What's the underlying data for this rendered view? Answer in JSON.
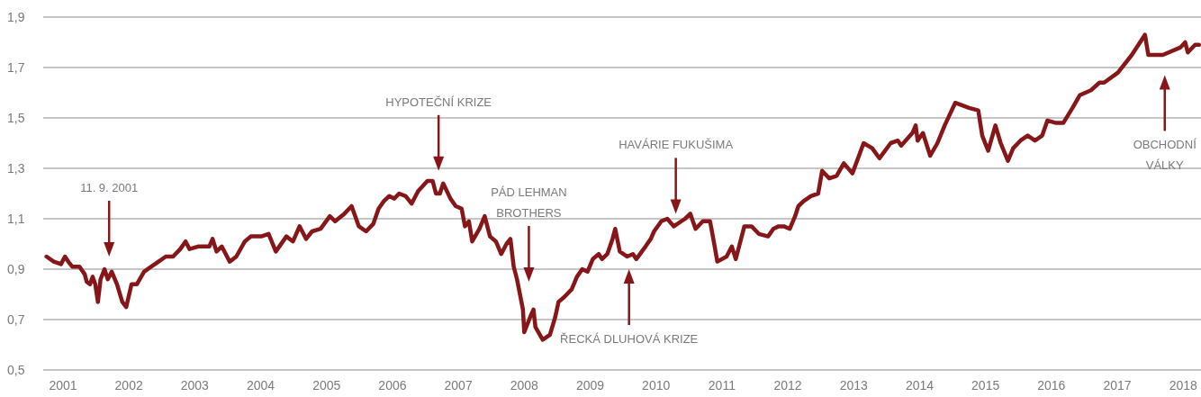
{
  "chart_data": {
    "type": "line",
    "x": [
      2000.75,
      2000.86,
      2000.97,
      2001.03,
      2001.08,
      2001.14,
      2001.25,
      2001.33,
      2001.36,
      2001.41,
      2001.45,
      2001.49,
      2001.53,
      2001.57,
      2001.63,
      2001.68,
      2001.74,
      2001.82,
      2001.9,
      2001.96,
      2002.04,
      2002.12,
      2002.23,
      2002.34,
      2002.45,
      2002.56,
      2002.67,
      2002.78,
      2002.86,
      2002.92,
      2003.05,
      2003.22,
      2003.27,
      2003.33,
      2003.41,
      2003.53,
      2003.63,
      2003.76,
      2003.85,
      2004.01,
      2004.12,
      2004.23,
      2004.39,
      2004.49,
      2004.59,
      2004.69,
      2004.78,
      2004.91,
      2005.05,
      2005.13,
      2005.27,
      2005.38,
      2005.49,
      2005.6,
      2005.71,
      2005.79,
      2005.87,
      2005.95,
      2006.03,
      2006.1,
      2006.2,
      2006.29,
      2006.39,
      2006.53,
      2006.61,
      2006.66,
      2006.72,
      2006.77,
      2006.88,
      2006.96,
      2007.05,
      2007.1,
      2007.16,
      2007.21,
      2007.32,
      2007.4,
      2007.48,
      2007.57,
      2007.65,
      2007.73,
      2007.79,
      2007.84,
      2007.89,
      2007.98,
      2008.0,
      2008.09,
      2008.14,
      2008.17,
      2008.28,
      2008.39,
      2008.47,
      2008.52,
      2008.61,
      2008.72,
      2008.8,
      2008.88,
      2008.96,
      2009.04,
      2009.13,
      2009.18,
      2009.26,
      2009.34,
      2009.38,
      2009.45,
      2009.56,
      2009.65,
      2009.7,
      2009.84,
      2009.92,
      2009.97,
      2010.08,
      2010.17,
      2010.27,
      2010.44,
      2010.52,
      2010.6,
      2010.71,
      2010.82,
      2010.89,
      2010.93,
      2011.07,
      2011.15,
      2011.21,
      2011.34,
      2011.45,
      2011.56,
      2011.7,
      2011.78,
      2011.86,
      2011.94,
      2012.03,
      2012.11,
      2012.16,
      2012.24,
      2012.35,
      2012.46,
      2012.52,
      2012.63,
      2012.74,
      2012.85,
      2012.98,
      2013.15,
      2013.28,
      2013.39,
      2013.56,
      2013.67,
      2013.72,
      2013.89,
      2013.94,
      2013.97,
      2014.05,
      2014.16,
      2014.27,
      2014.38,
      2014.54,
      2014.75,
      2014.89,
      2014.95,
      2015.04,
      2015.15,
      2015.23,
      2015.34,
      2015.42,
      2015.53,
      2015.64,
      2015.75,
      2015.86,
      2015.94,
      2016.07,
      2016.18,
      2016.32,
      2016.43,
      2016.6,
      2016.73,
      2016.8,
      2017.01,
      2017.22,
      2017.42,
      2017.47,
      2017.69,
      2017.96,
      2018.03,
      2018.07,
      2018.18,
      2018.24
    ],
    "series": [
      {
        "color": "#861618",
        "values": [
          0.95,
          0.93,
          0.92,
          0.95,
          0.93,
          0.91,
          0.91,
          0.88,
          0.85,
          0.84,
          0.87,
          0.84,
          0.77,
          0.86,
          0.9,
          0.86,
          0.89,
          0.84,
          0.77,
          0.75,
          0.84,
          0.84,
          0.89,
          0.91,
          0.93,
          0.95,
          0.95,
          0.98,
          1.01,
          0.98,
          0.99,
          0.99,
          1.02,
          0.97,
          0.99,
          0.93,
          0.95,
          1.01,
          1.03,
          1.03,
          1.04,
          0.97,
          1.03,
          1.01,
          1.07,
          1.02,
          1.05,
          1.06,
          1.11,
          1.09,
          1.12,
          1.15,
          1.07,
          1.05,
          1.08,
          1.14,
          1.17,
          1.19,
          1.18,
          1.2,
          1.19,
          1.16,
          1.21,
          1.25,
          1.25,
          1.2,
          1.2,
          1.24,
          1.18,
          1.15,
          1.14,
          1.07,
          1.09,
          1.01,
          1.06,
          1.11,
          1.03,
          1.01,
          0.96,
          1.0,
          1.02,
          0.91,
          0.86,
          0.74,
          0.65,
          0.71,
          0.74,
          0.67,
          0.62,
          0.64,
          0.71,
          0.77,
          0.79,
          0.82,
          0.87,
          0.9,
          0.89,
          0.94,
          0.96,
          0.94,
          0.96,
          1.02,
          1.06,
          0.97,
          0.95,
          0.96,
          0.94,
          0.99,
          1.02,
          1.05,
          1.09,
          1.1,
          1.07,
          1.1,
          1.12,
          1.06,
          1.09,
          1.09,
          0.99,
          0.93,
          0.95,
          0.99,
          0.94,
          1.07,
          1.07,
          1.04,
          1.03,
          1.06,
          1.07,
          1.07,
          1.06,
          1.11,
          1.15,
          1.17,
          1.19,
          1.2,
          1.29,
          1.26,
          1.27,
          1.32,
          1.28,
          1.4,
          1.38,
          1.34,
          1.4,
          1.41,
          1.39,
          1.44,
          1.47,
          1.41,
          1.44,
          1.35,
          1.4,
          1.47,
          1.56,
          1.54,
          1.53,
          1.43,
          1.37,
          1.47,
          1.4,
          1.33,
          1.38,
          1.41,
          1.43,
          1.41,
          1.43,
          1.49,
          1.48,
          1.48,
          1.54,
          1.59,
          1.61,
          1.64,
          1.64,
          1.68,
          1.75,
          1.83,
          1.75,
          1.75,
          1.78,
          1.8,
          1.76,
          1.79,
          1.79
        ]
      }
    ],
    "xlim": [
      2000.7,
      2018.27
    ],
    "xticks": [
      2001,
      2002,
      2003,
      2004,
      2005,
      2006,
      2007,
      2008,
      2009,
      2010,
      2011,
      2012,
      2013,
      2014,
      2015,
      2016,
      2017,
      2018
    ],
    "ylim": [
      0.5,
      1.9
    ],
    "yticks": [
      {
        "value": 0.5,
        "label": "0,5"
      },
      {
        "value": 0.7,
        "label": "0,7"
      },
      {
        "value": 0.9,
        "label": "0,9"
      },
      {
        "value": 1.1,
        "label": "1,1"
      },
      {
        "value": 1.3,
        "label": "1,3"
      },
      {
        "value": 1.5,
        "label": "1,5"
      },
      {
        "value": 1.7,
        "label": "1,7"
      },
      {
        "value": 1.9,
        "label": "1,9"
      }
    ],
    "grid": "y",
    "annotations": [
      "11. 9. 2001",
      "HYPOTEČNÍ KRIZE",
      "PÁD LEHMAN\nBROTHERS",
      "ŘECKÁ DLUHOVÁ KRIZE",
      "HAVÁRIE FUKUŠIMA",
      "OBCHODNÍ\nVÁLKY"
    ]
  }
}
